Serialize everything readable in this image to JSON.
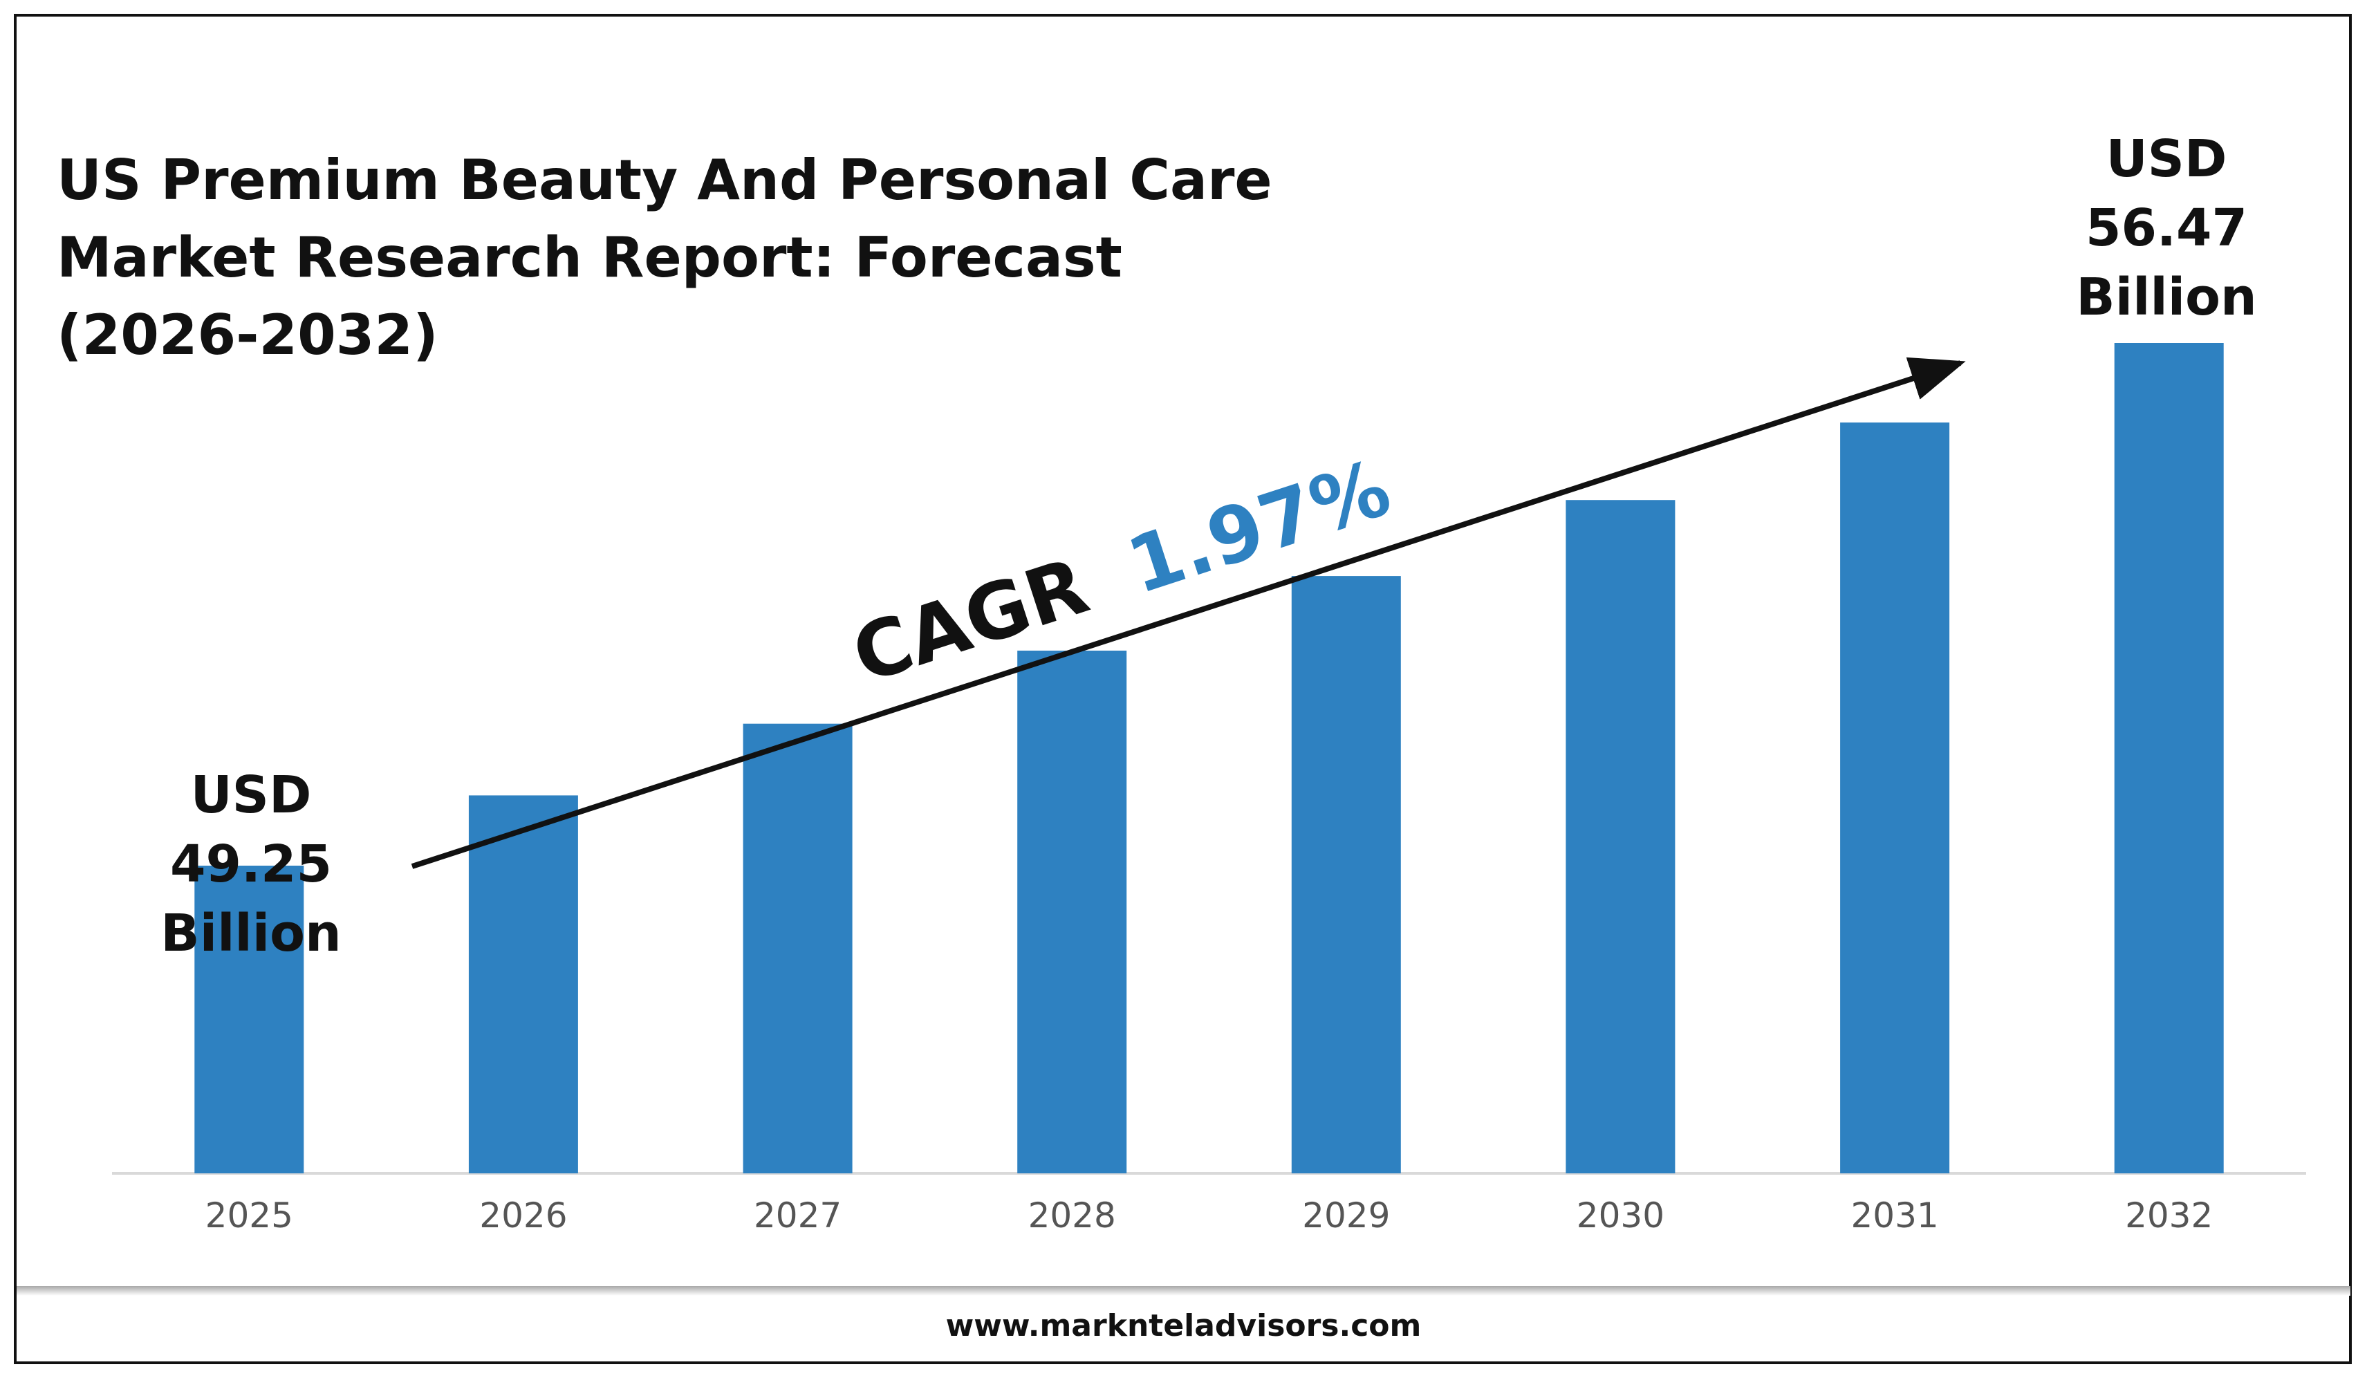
{
  "colors": {
    "bar": "#2e81c1",
    "cagr_value": "#2e81c1",
    "text": "#111111",
    "axis": "#d9d9d9",
    "tick": "#555555"
  },
  "chart_data": {
    "type": "bar",
    "title_lines": [
      "US Premium Beauty And Personal Care",
      "Market Research Report: Forecast",
      "(2026-2032)"
    ],
    "categories": [
      "2025",
      "2026",
      "2027",
      "2028",
      "2029",
      "2030",
      "2031",
      "2032"
    ],
    "values": [
      49.25,
      50.22,
      51.21,
      52.22,
      53.25,
      54.3,
      55.37,
      56.47
    ],
    "unit": "USD Billion",
    "baseline": 45.0,
    "ylim": [
      45.0,
      57.1
    ],
    "grid": false,
    "annotations": {
      "start": {
        "category": "2025",
        "lines": [
          "USD",
          "49.25",
          "Billion"
        ]
      },
      "end": {
        "category": "2032",
        "lines": [
          "USD",
          "56.47",
          "Billion"
        ]
      },
      "cagr": {
        "prefix": "CAGR",
        "value": "1.97%"
      }
    }
  },
  "footer": {
    "website": "www.marknteladvisors.com"
  }
}
